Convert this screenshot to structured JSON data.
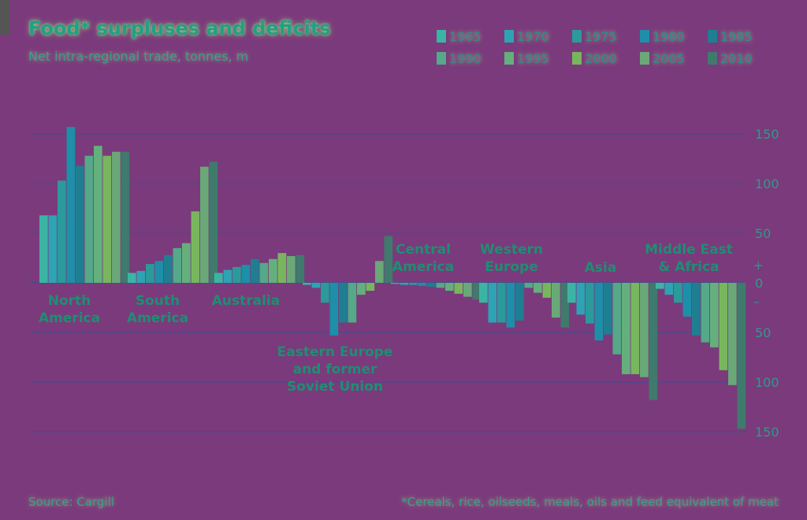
{
  "chart_data": {
    "type": "bar",
    "title": "Food* surpluses and deficits",
    "subtitle": "Net intra-regional trade, tonnes, m",
    "series_names": [
      "1965",
      "1970",
      "1975",
      "1980",
      "1985",
      "1990",
      "1995",
      "2000",
      "2005",
      "2010"
    ],
    "colors": [
      "#3cb4a4",
      "#2ea3b4",
      "#2b9a9a",
      "#1e8fa8",
      "#1f7e92",
      "#55a888",
      "#64b07c",
      "#78b65e",
      "#6aa878",
      "#3f7a6c"
    ],
    "categories": [
      "North America",
      "South America",
      "Australia",
      "Eastern Europe and former Soviet Union",
      "Central America",
      "Western Europe",
      "Asia",
      "Middle East & Africa"
    ],
    "category_labels": [
      [
        "North",
        "America"
      ],
      [
        "South",
        "America"
      ],
      [
        "Australia"
      ],
      [
        "Eastern Europe",
        "and former",
        "Soviet Union"
      ],
      [
        "Central",
        "America"
      ],
      [
        "Western",
        "Europe"
      ],
      [
        "Asia"
      ],
      [
        "Middle East",
        "& Africa"
      ]
    ],
    "values": [
      [
        68,
        68,
        103,
        157,
        118,
        128,
        138,
        128,
        132,
        132
      ],
      [
        10,
        12,
        19,
        22,
        28,
        35,
        40,
        72,
        117,
        122
      ],
      [
        10,
        13,
        16,
        18,
        24,
        20,
        24,
        30,
        27,
        28
      ],
      [
        -2,
        -5,
        -20,
        -53,
        -40,
        -40,
        -12,
        -8,
        22,
        47
      ],
      [
        -1,
        -2,
        -2,
        -3,
        -4,
        -5,
        -8,
        -11,
        -14,
        -17
      ],
      [
        -20,
        -40,
        -40,
        -45,
        -38,
        -5,
        -10,
        -15,
        -35,
        -45
      ],
      [
        -20,
        -32,
        -41,
        -58,
        -52,
        -72,
        -92,
        -92,
        -95,
        -118
      ],
      [
        -6,
        -12,
        -20,
        -34,
        -53,
        -60,
        -65,
        -88,
        -103,
        -147
      ]
    ],
    "yticks": [
      {
        "value": 150,
        "label": "150"
      },
      {
        "value": 100,
        "label": "100"
      },
      {
        "value": 50,
        "label": "50"
      },
      {
        "value": 0,
        "label": "0"
      },
      {
        "value": -50,
        "label": "50"
      },
      {
        "value": -100,
        "label": "100"
      },
      {
        "value": -150,
        "label": "150"
      }
    ],
    "plus_marker": "+",
    "minus_marker": "–",
    "ylim": [
      -170,
      170
    ],
    "grid": true,
    "legend_position": "top-right",
    "source": "Source: Cargill",
    "footnote": "*Cereals, rice, oilseeds, meals, oils and feed equivalent of meat"
  },
  "style": {
    "gridline_color": "#3f4f8c",
    "text_color": "#2f9a8a",
    "label_color": "#1d8f72"
  }
}
